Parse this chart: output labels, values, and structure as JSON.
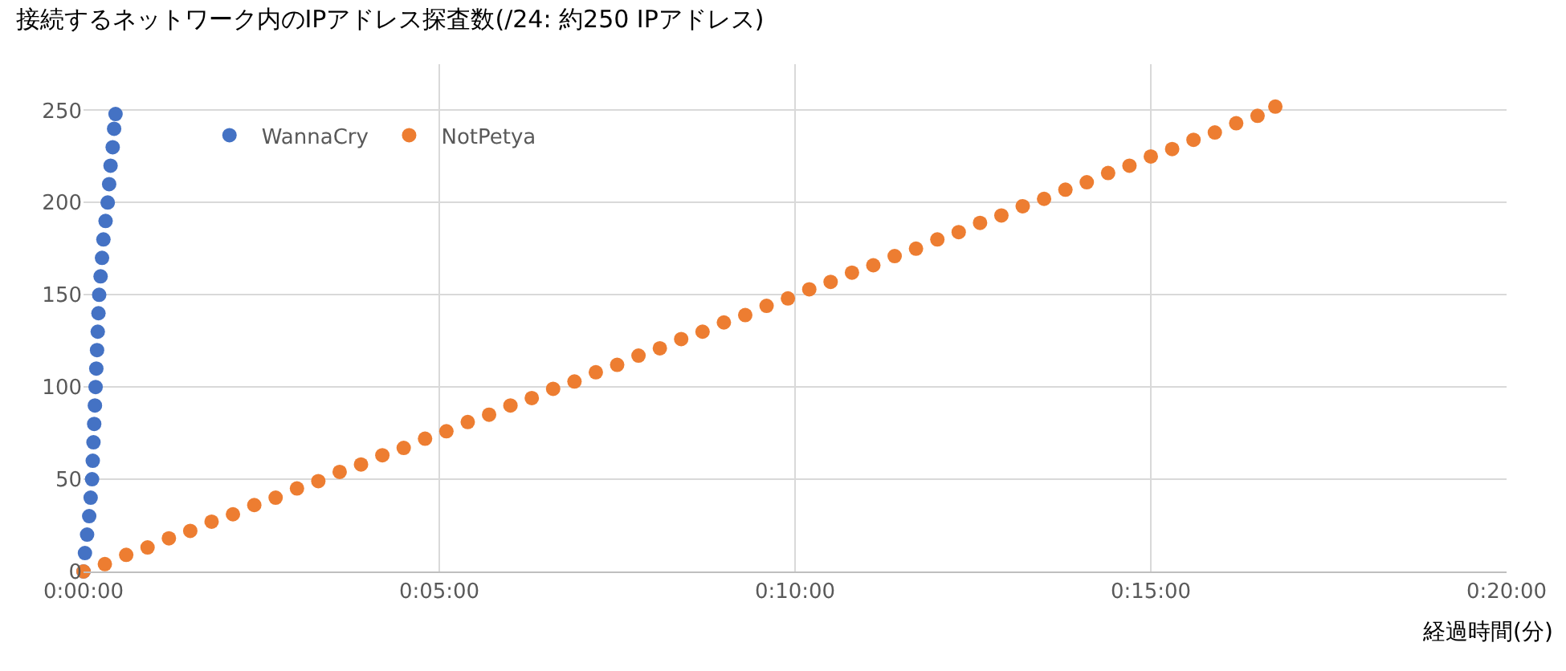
{
  "chart_data": {
    "type": "scatter",
    "title": "接続するネットワーク内のIPアドレス探査数(/24: 約250 IPアドレス)",
    "xlabel": "経過時間(分)",
    "xlim": [
      0,
      20
    ],
    "xticks": [
      {
        "value": 0,
        "label": "0:00:00"
      },
      {
        "value": 5,
        "label": "0:05:00"
      },
      {
        "value": 10,
        "label": "0:10:00"
      },
      {
        "value": 15,
        "label": "0:15:00"
      },
      {
        "value": 20,
        "label": "0:20:00"
      }
    ],
    "ylim": [
      0,
      275
    ],
    "yticks": [
      0,
      50,
      100,
      150,
      200,
      250
    ],
    "grid": true,
    "legend": "top left",
    "marker": "circle",
    "series": [
      {
        "name": "WannaCry",
        "color": "#4472c4",
        "x": [
          0,
          0.02,
          0.05,
          0.08,
          0.1,
          0.12,
          0.13,
          0.14,
          0.15,
          0.16,
          0.17,
          0.18,
          0.19,
          0.2,
          0.21,
          0.22,
          0.24,
          0.26,
          0.28,
          0.31,
          0.34,
          0.36,
          0.38,
          0.41,
          0.43,
          0.45
        ],
        "values": [
          0,
          10,
          20,
          30,
          40,
          50,
          60,
          70,
          80,
          90,
          100,
          110,
          120,
          130,
          140,
          150,
          160,
          170,
          180,
          190,
          200,
          210,
          220,
          230,
          240,
          248
        ]
      },
      {
        "name": "NotPetya",
        "color": "#ed7d31",
        "x": [
          0,
          0.3,
          0.6,
          0.9,
          1.2,
          1.5,
          1.8,
          2.1,
          2.4,
          2.7,
          3,
          3.3,
          3.6,
          3.9,
          4.2,
          4.5,
          4.8,
          5.1,
          5.4,
          5.7,
          6,
          6.3,
          6.6,
          6.9,
          7.2,
          7.5,
          7.8,
          8.1,
          8.4,
          8.7,
          9,
          9.3,
          9.6,
          9.9,
          10.2,
          10.5,
          10.8,
          11.1,
          11.4,
          11.7,
          12,
          12.3,
          12.6,
          12.9,
          13.2,
          13.5,
          13.8,
          14.1,
          14.4,
          14.7,
          15,
          15.3,
          15.6,
          15.9,
          16.2,
          16.5,
          16.75
        ],
        "values": [
          0,
          4,
          9,
          13,
          18,
          22,
          27,
          31,
          36,
          40,
          45,
          49,
          54,
          58,
          63,
          67,
          72,
          76,
          81,
          85,
          90,
          94,
          99,
          103,
          108,
          112,
          117,
          121,
          126,
          130,
          135,
          139,
          144,
          148,
          153,
          157,
          162,
          166,
          171,
          175,
          180,
          184,
          189,
          193,
          198,
          202,
          207,
          211,
          216,
          220,
          225,
          229,
          234,
          238,
          243,
          247,
          252
        ]
      }
    ]
  }
}
